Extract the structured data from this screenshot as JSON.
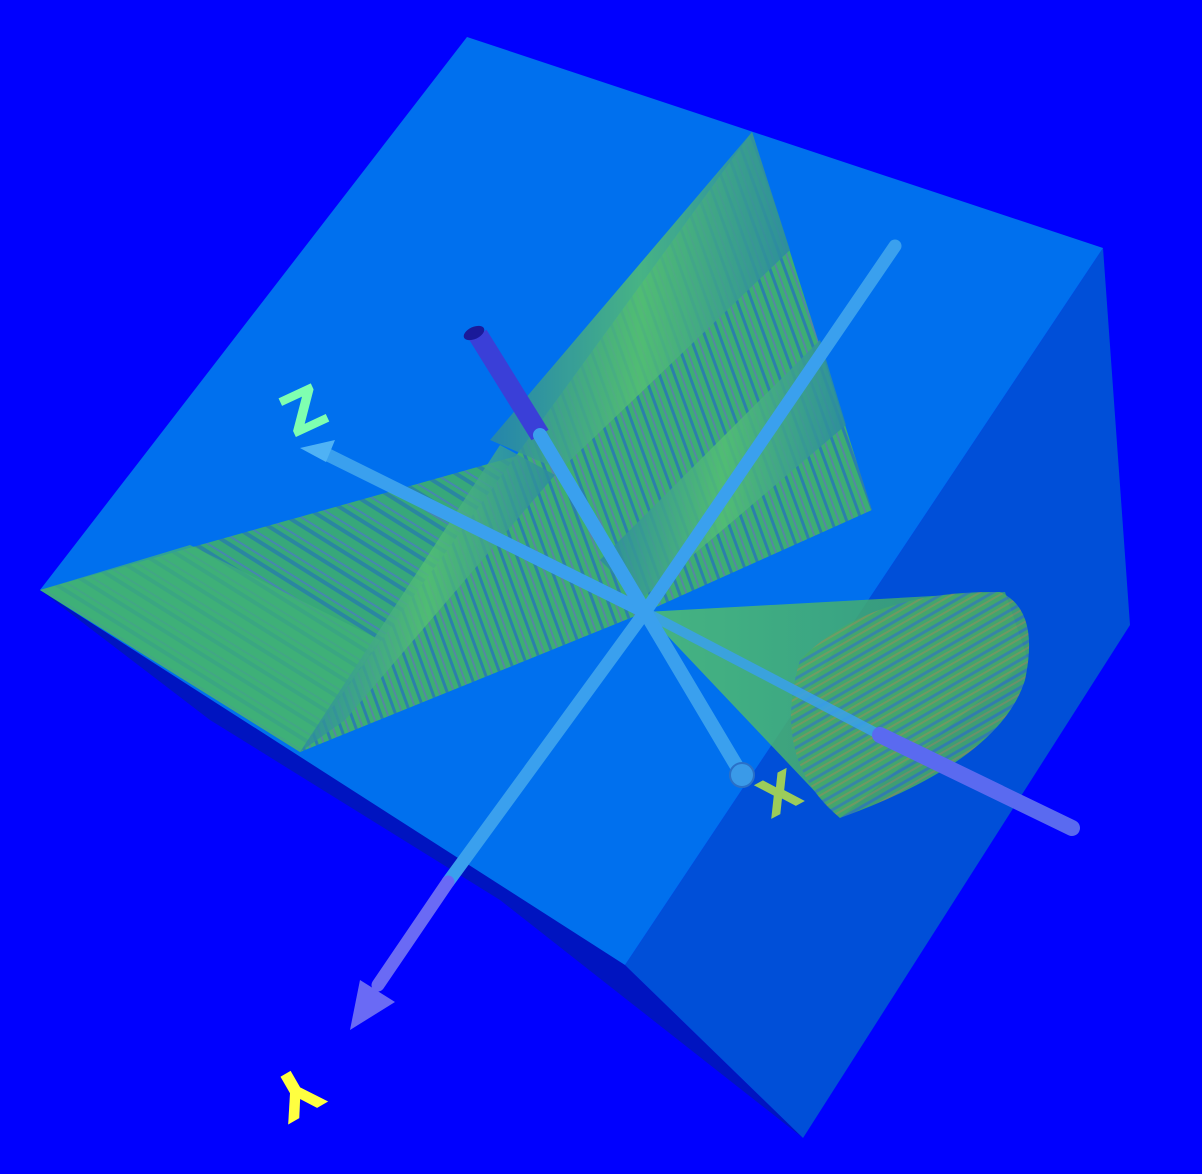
{
  "scene": {
    "background": "#0000ff",
    "cube_front_face_color": "#0070ee",
    "cube_side_face_color": "#004fd8",
    "cube_bottom_face_color": "#0014c0",
    "surface_colors": {
      "base": "#3fb56a",
      "stripe_a": "#2f8aa8",
      "stripe_b": "#6fbf5a"
    }
  },
  "axes": [
    {
      "id": "x",
      "label": "X",
      "label_color": "#9ccc5a",
      "shaft_color": "#5a6af0",
      "icon": "arrow-icon"
    },
    {
      "id": "y",
      "label": "Y",
      "label_color": "#ffff40",
      "shaft_color": "#6a6af5",
      "icon": "arrow-icon"
    },
    {
      "id": "z",
      "label": "Z",
      "label_color": "#7fffb0",
      "shaft_color": "#3aa0ee",
      "icon": "arrow-icon"
    }
  ]
}
